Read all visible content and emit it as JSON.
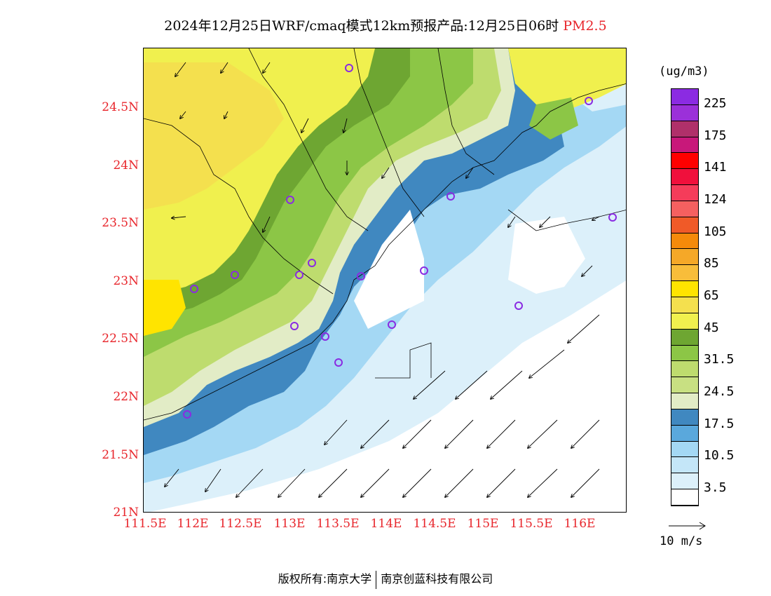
{
  "title": {
    "main": "2024年12月25日WRF/cmaq模式12km预报产品:12月25日06时",
    "variable": "PM2.5"
  },
  "colors": {
    "axis_label": "#e8262c",
    "station_marker": "#8a2be2"
  },
  "map": {
    "lat_ticks": [
      "24.5N",
      "24N",
      "23.5N",
      "23N",
      "22.5N",
      "22N",
      "21.5N",
      "21N"
    ],
    "lon_ticks": [
      "111.5E",
      "112E",
      "112.5E",
      "113E",
      "113.5E",
      "114E",
      "114.5E",
      "115E",
      "115.5E",
      "116E"
    ],
    "lat_range": [
      21,
      25
    ],
    "lon_range": [
      111.5,
      116.5
    ]
  },
  "legend": {
    "units": "(ug/m3)",
    "colors": [
      "#8b2be2",
      "#9b30d9",
      "#b0306a",
      "#c8187a",
      "#ff0000",
      "#f0103c",
      "#f53c5a",
      "#f56060",
      "#f05a28",
      "#f58a0a",
      "#f5a828",
      "#f8bd3a",
      "#ffe400",
      "#f4e04e",
      "#f0f04e",
      "#6ea632",
      "#8cc646",
      "#bedc6e",
      "#c8e082",
      "#e2ecc6",
      "#4088c0",
      "#5aa8dc",
      "#a4d8f4",
      "#c4e6f8",
      "#dcf0fa",
      "#ffffff"
    ],
    "labels": [
      "225",
      "175",
      "141",
      "124",
      "105",
      "85",
      "65",
      "45",
      "31.5",
      "24.5",
      "17.5",
      "10.5",
      "3.5"
    ],
    "reference_vector": "10 m/s"
  },
  "footer": {
    "left": "版权所有:南京大学",
    "right": "南京创蓝科技有限公司"
  }
}
